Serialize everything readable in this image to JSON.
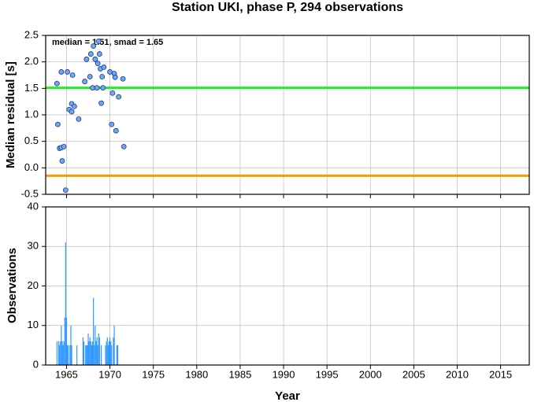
{
  "chart_data": [
    {
      "type": "scatter",
      "title": "Station UKI, phase P, 294 observations",
      "annotation": "median = 1.51, smad = 1.65",
      "ylabel": "Median residual [s]",
      "x": [
        1963.9,
        1964.0,
        1964.2,
        1964.4,
        1964.4,
        1964.5,
        1964.7,
        1964.9,
        1965.1,
        1965.3,
        1965.6,
        1965.6,
        1965.7,
        1965.9,
        1966.4,
        1967.1,
        1967.3,
        1967.7,
        1967.8,
        1968.0,
        1968.1,
        1968.3,
        1968.5,
        1968.6,
        1968.7,
        1968.8,
        1968.9,
        1969.0,
        1969.1,
        1969.2,
        1969.3,
        1970.0,
        1970.2,
        1970.3,
        1970.5,
        1970.6,
        1970.7,
        1971.0,
        1971.5,
        1971.6
      ],
      "values": [
        1.59,
        0.82,
        0.37,
        1.81,
        0.38,
        0.13,
        0.4,
        -0.42,
        1.81,
        1.1,
        1.21,
        1.06,
        1.75,
        1.16,
        0.92,
        1.63,
        2.05,
        1.72,
        2.15,
        1.51,
        2.3,
        2.05,
        1.51,
        1.97,
        2.39,
        2.15,
        1.87,
        1.22,
        1.72,
        1.51,
        1.9,
        1.81,
        0.82,
        1.41,
        1.78,
        1.71,
        0.7,
        1.34,
        1.68,
        0.4
      ],
      "color": "#6fa8f5",
      "hlines": [
        {
          "value": 1.51,
          "color": "#22ee22"
        },
        {
          "value": -0.15,
          "color": "#f0a000"
        }
      ],
      "xlim": [
        1962.6,
        2018.3
      ],
      "xticks": [
        1965,
        1970,
        1975,
        1980,
        1985,
        1990,
        1995,
        2000,
        2005,
        2010,
        2015
      ],
      "ylim": [
        -0.5,
        2.5
      ],
      "yticks": [
        -0.5,
        {
          "value": 0,
          "label": "0.0"
        },
        0.5,
        {
          "value": 1,
          "label": "1.0"
        },
        1.5,
        {
          "value": 2,
          "label": "2.0"
        },
        2.5
      ],
      "grid": true
    },
    {
      "type": "bar",
      "ylabel": "Observations",
      "xlabel": "Year",
      "x": [
        1963.9,
        1964.1,
        1964.2,
        1964.3,
        1964.4,
        1964.5,
        1964.6,
        1964.7,
        1964.8,
        1964.9,
        1965.0,
        1965.1,
        1965.2,
        1965.4,
        1965.5,
        1965.6,
        1966.2,
        1966.9,
        1967.0,
        1967.2,
        1967.3,
        1967.4,
        1967.5,
        1967.6,
        1967.7,
        1967.8,
        1967.9,
        1968.0,
        1968.1,
        1968.2,
        1968.3,
        1968.4,
        1968.5,
        1968.6,
        1968.7,
        1968.8,
        1969.0,
        1969.5,
        1969.6,
        1969.7,
        1969.8,
        1969.9,
        1970.0,
        1970.1,
        1970.2,
        1970.4,
        1970.5,
        1970.8,
        1970.9
      ],
      "values": [
        6,
        6,
        5,
        6,
        10,
        6,
        5,
        6,
        12,
        31,
        12,
        5,
        5,
        5,
        10,
        5,
        5,
        7,
        6,
        5,
        5,
        5,
        8,
        6,
        7,
        6,
        5,
        6,
        17,
        5,
        10,
        6,
        7,
        5,
        8,
        7,
        5,
        5,
        6,
        7,
        5,
        6,
        7,
        6,
        5,
        7,
        10,
        5,
        5
      ],
      "color": "#3399ff",
      "xlim": [
        1962.6,
        2018.3
      ],
      "xticks": [
        1965,
        1970,
        1975,
        1980,
        1985,
        1990,
        1995,
        2000,
        2005,
        2010,
        2015
      ],
      "ylim": [
        0,
        40
      ],
      "yticks": [
        0,
        10,
        20,
        30,
        40
      ],
      "grid": true
    }
  ]
}
